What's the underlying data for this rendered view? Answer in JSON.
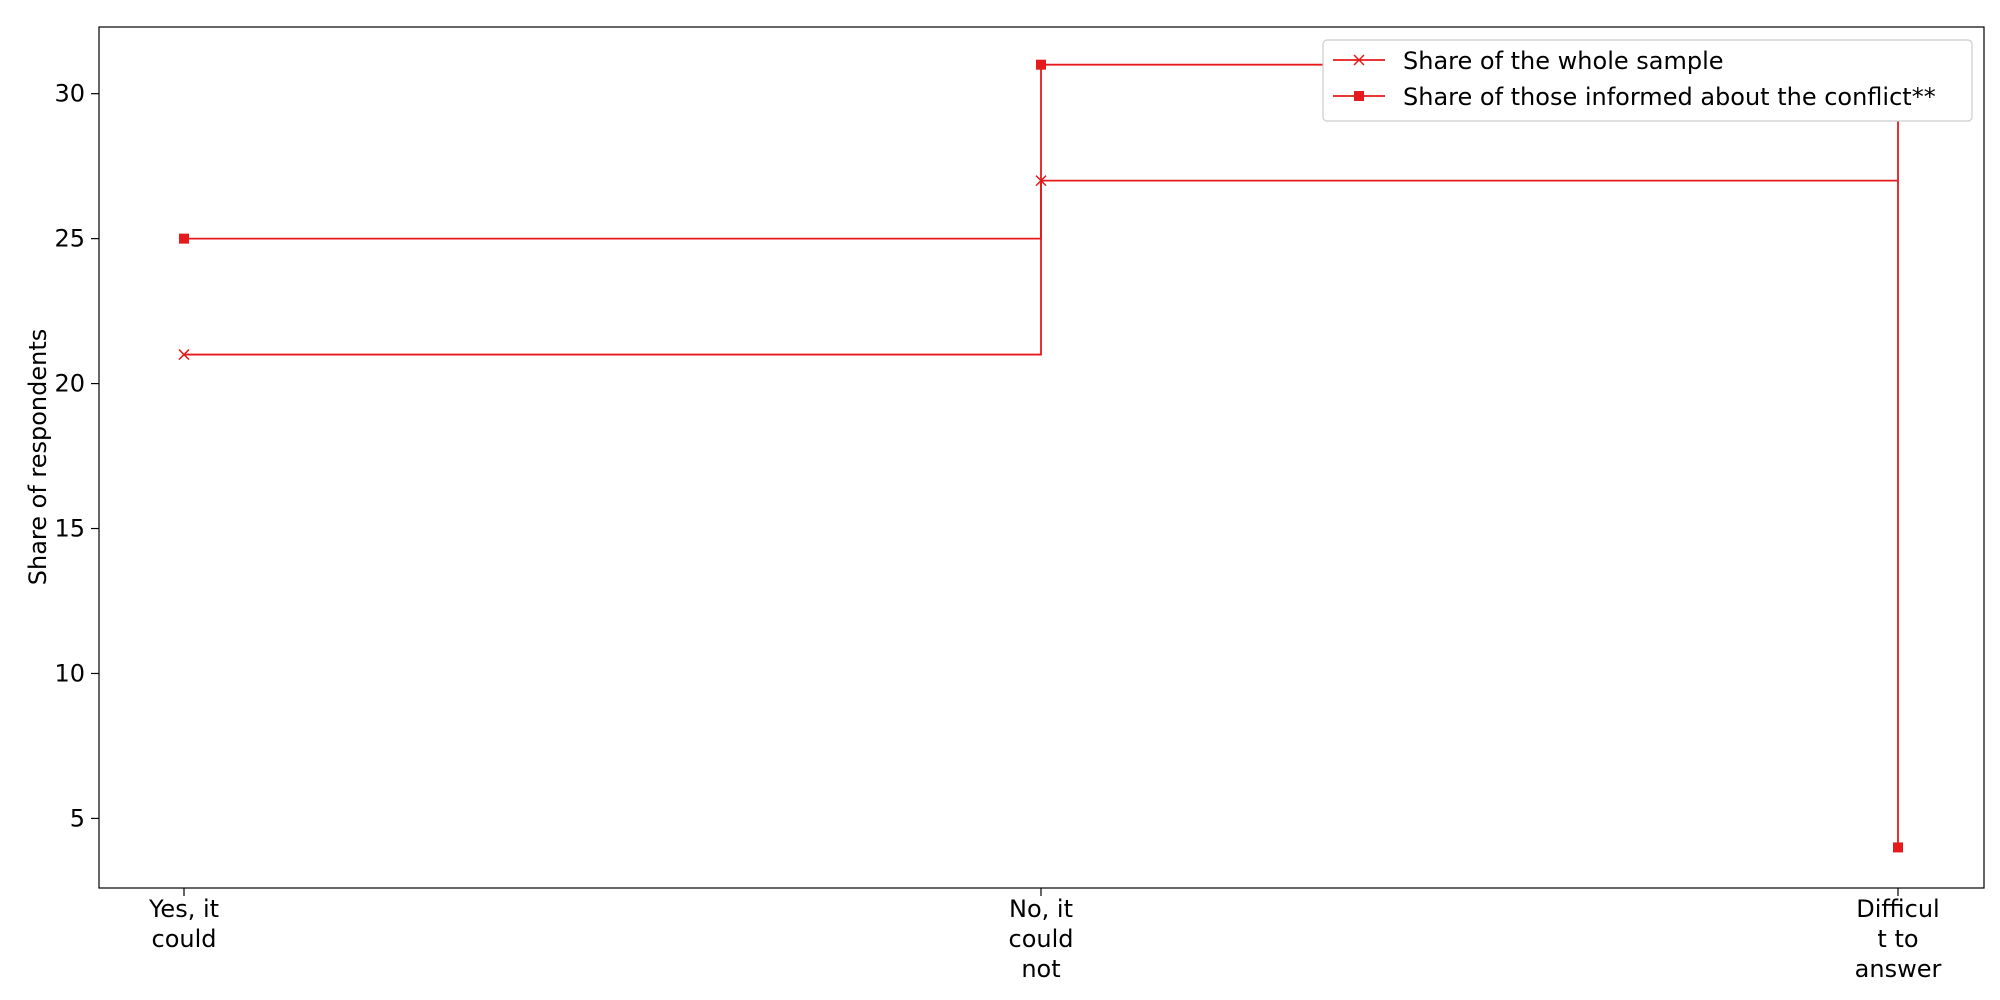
{
  "chart_data": {
    "type": "line",
    "step": "post",
    "categories": [
      [
        "Yes, it",
        "could"
      ],
      [
        "No, it",
        "could",
        "not"
      ],
      [
        "Difficul",
        "t to",
        "answer"
      ]
    ],
    "ylabel": "Share of respondents",
    "ylim": [
      2.6,
      32.3
    ],
    "yticks": [
      5,
      10,
      15,
      20,
      25,
      30
    ],
    "legend_position": "top-right",
    "series": [
      {
        "name": "Share of the whole sample",
        "marker": "x",
        "color": "#e41a1c",
        "values": [
          21,
          27,
          null
        ]
      },
      {
        "name": "Share of those informed about the conflict**",
        "marker": "square",
        "color": "#e41a1c",
        "values": [
          25,
          31,
          4
        ]
      }
    ]
  }
}
